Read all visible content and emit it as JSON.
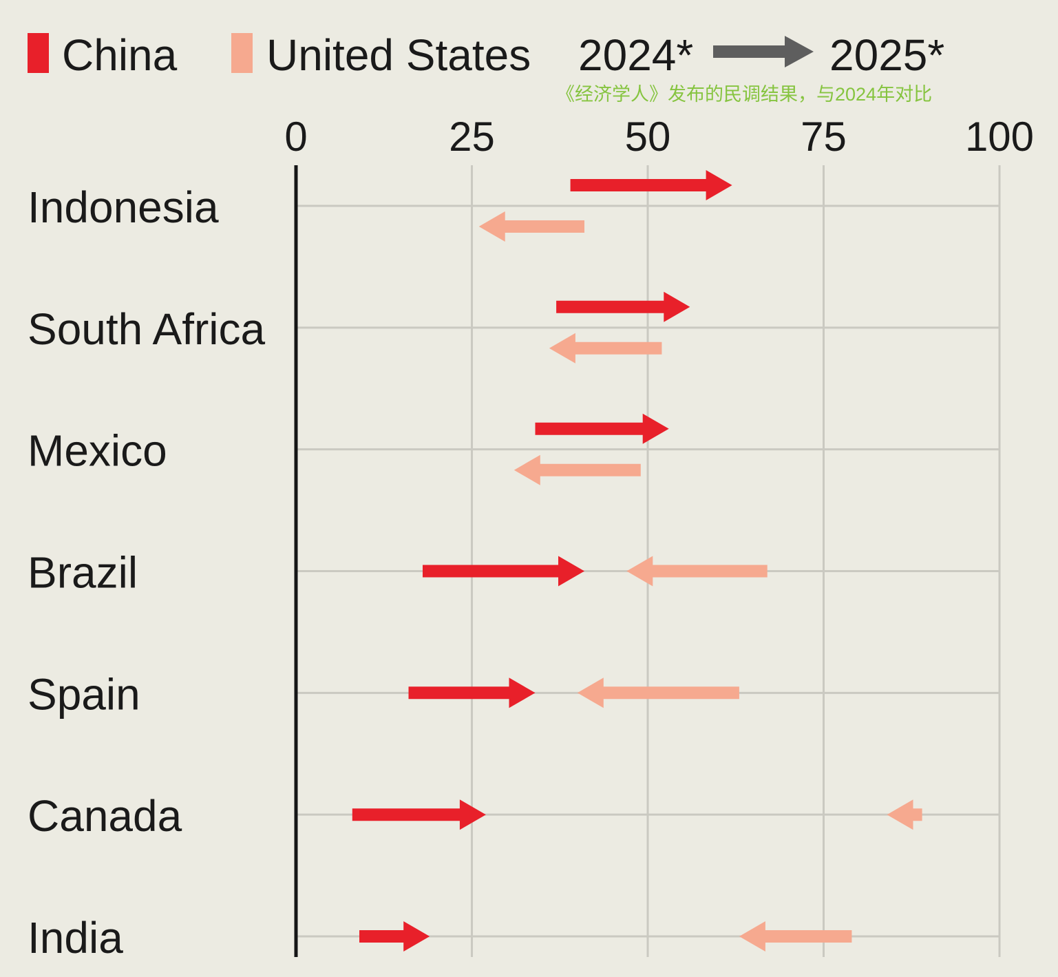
{
  "legend": {
    "series": [
      {
        "name": "China",
        "color": "#e8202a"
      },
      {
        "name": "United States",
        "color": "#f6a98f"
      }
    ],
    "from_label": "2024*",
    "to_label": "2025*",
    "arrow_color": "#5e5e5e"
  },
  "note": "《经济学人》发布的民调结果，与2024年对比",
  "chart_data": {
    "type": "arrow-range",
    "xlim": [
      0,
      100
    ],
    "ticks": [
      "0",
      "25",
      "50",
      "75",
      "100"
    ],
    "tick_values": [
      0,
      25,
      50,
      75,
      100
    ],
    "grid": true,
    "countries": [
      "Indonesia",
      "South Africa",
      "Mexico",
      "Brazil",
      "Spain",
      "Canada",
      "India"
    ],
    "series": [
      {
        "name": "China",
        "color": "#e8202a",
        "from_2024": [
          39,
          37,
          34,
          18,
          16,
          8,
          9
        ],
        "to_2025": [
          62,
          56,
          53,
          41,
          34,
          27,
          19
        ]
      },
      {
        "name": "United States",
        "color": "#f6a98f",
        "from_2024": [
          41,
          52,
          49,
          67,
          63,
          89,
          79
        ],
        "to_2025": [
          26,
          36,
          31,
          47,
          40,
          84,
          63
        ]
      }
    ]
  }
}
